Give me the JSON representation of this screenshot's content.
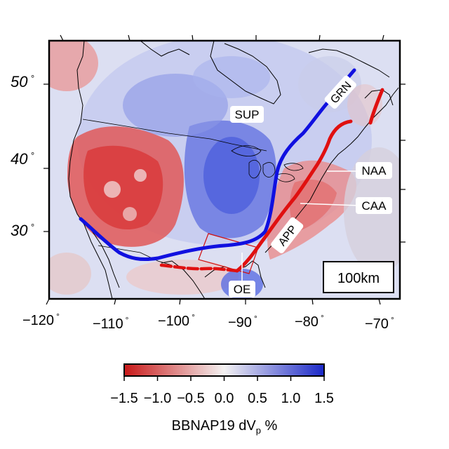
{
  "map": {
    "lat_labels": [
      {
        "value": "50",
        "unit": "°"
      },
      {
        "value": "40",
        "unit": "°"
      },
      {
        "value": "30",
        "unit": "°"
      }
    ],
    "lon_labels": [
      {
        "value": "−120",
        "unit": "°"
      },
      {
        "value": "−110",
        "unit": "°"
      },
      {
        "value": "−100",
        "unit": "°"
      },
      {
        "value": "−90",
        "unit": "°"
      },
      {
        "value": "−80",
        "unit": "°"
      },
      {
        "value": "−70",
        "unit": "°"
      }
    ],
    "annotations": {
      "sup": "SUP",
      "grn": "GRN",
      "naa": "NAA",
      "caa": "CAA",
      "app": "APP",
      "oe": "OE"
    },
    "scale_label": "100km",
    "colors": {
      "grenville_front": "#1010e0",
      "appalachian_front": "#e01010",
      "slow": "#d42020",
      "fast": "#2030d8",
      "neutral": "#f4f2f2"
    }
  },
  "colorbar": {
    "ticks": [
      "−1.5",
      "−1.0",
      "−0.5",
      "0.0",
      "0.5",
      "1.0",
      "1.5"
    ],
    "tick_values": [
      -1.5,
      -1.0,
      -0.5,
      0.0,
      0.5,
      1.0,
      1.5
    ],
    "range": [
      -1.5,
      1.5
    ],
    "label_main": "BBNAP19 dV",
    "label_sub": "p",
    "label_unit": " %"
  }
}
